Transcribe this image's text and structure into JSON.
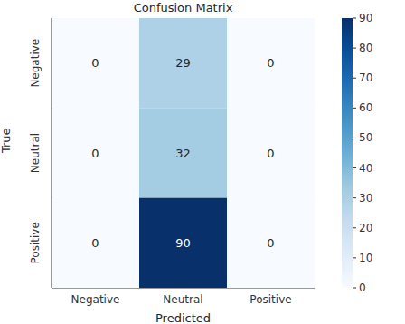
{
  "chart_data": {
    "type": "heatmap",
    "title": "Confusion Matrix",
    "x_label": "Predicted",
    "y_label": "True",
    "x_categories": [
      "Negative",
      "Neutral",
      "Positive"
    ],
    "y_categories": [
      "Negative",
      "Neutral",
      "Positive"
    ],
    "cells": [
      [
        0,
        29,
        0
      ],
      [
        0,
        32,
        0
      ],
      [
        0,
        90,
        0
      ]
    ],
    "data_labels": true,
    "color": "Blues",
    "colorbar": {
      "lim": [
        0,
        90
      ],
      "ticks": [
        0,
        10,
        20,
        30,
        40,
        50,
        60,
        70,
        80,
        90
      ]
    }
  }
}
